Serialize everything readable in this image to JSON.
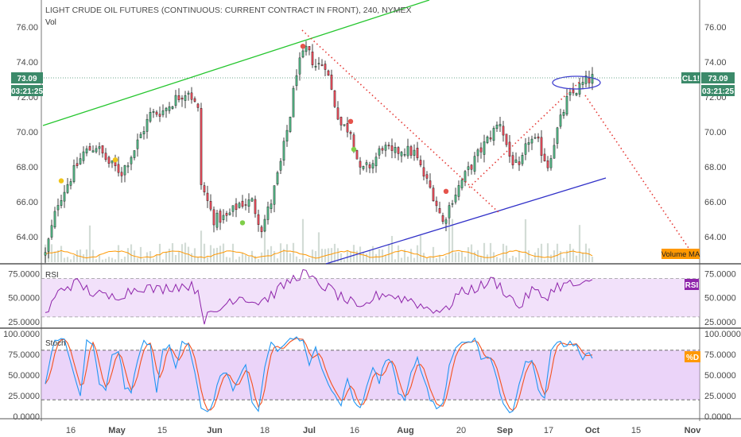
{
  "chart_data": {
    "type": "candlestick",
    "title": "LIGHT CRUDE OIL FUTURES (CONTINUOUS: CURRENT CONTRACT IN FRONT), 240, NYMEX",
    "symbol": "CL1!",
    "last_price": "73.09",
    "countdown": "03:21:25",
    "x_tick_labels": [
      "16",
      "May",
      "15",
      "Jun",
      "18",
      "Jul",
      "16",
      "Aug",
      "20",
      "Sep",
      "17",
      "Oct",
      "15",
      "Nov"
    ],
    "price_panel": {
      "ylim": [
        63,
        77.5
      ],
      "y_ticks": [
        "76.00",
        "74.00",
        "72.00",
        "70.00",
        "68.00",
        "66.00",
        "64.00"
      ],
      "series_label": "Vol",
      "volume_ma_label": "Volume MA",
      "close_anchors": [
        [
          0,
          63.0
        ],
        [
          4,
          66.0
        ],
        [
          8,
          67.4
        ],
        [
          12,
          68.8
        ],
        [
          16,
          69.2
        ],
        [
          20,
          68.2
        ],
        [
          24,
          67.7
        ],
        [
          28,
          69.0
        ],
        [
          33,
          71.0
        ],
        [
          37,
          71.2
        ],
        [
          41,
          71.9
        ],
        [
          45,
          72.4
        ],
        [
          48,
          71.2
        ],
        [
          49,
          67.0
        ],
        [
          53,
          65.0
        ],
        [
          57,
          65.1
        ],
        [
          61,
          65.9
        ],
        [
          65,
          66.0
        ],
        [
          68,
          64.5
        ],
        [
          71,
          66.0
        ],
        [
          74,
          68.2
        ],
        [
          77,
          71.0
        ],
        [
          79,
          73.5
        ],
        [
          82,
          74.7
        ],
        [
          85,
          73.8
        ],
        [
          88,
          73.9
        ],
        [
          91,
          71.6
        ],
        [
          93,
          70.4
        ],
        [
          96,
          70.1
        ],
        [
          99,
          67.7
        ],
        [
          103,
          68.2
        ],
        [
          106,
          69.2
        ],
        [
          109,
          68.7
        ],
        [
          112,
          69.0
        ],
        [
          116,
          68.8
        ],
        [
          119,
          67.5
        ],
        [
          122,
          66.4
        ],
        [
          125,
          64.8
        ],
        [
          128,
          66.2
        ],
        [
          131,
          67.2
        ],
        [
          134,
          68.1
        ],
        [
          137,
          69.0
        ],
        [
          140,
          69.8
        ],
        [
          143,
          70.6
        ],
        [
          146,
          68.6
        ],
        [
          149,
          67.8
        ],
        [
          152,
          69.6
        ],
        [
          155,
          69.3
        ],
        [
          158,
          68.1
        ],
        [
          161,
          70.1
        ],
        [
          164,
          71.8
        ],
        [
          167,
          72.4
        ],
        [
          170,
          72.9
        ],
        [
          172,
          73.09
        ]
      ]
    },
    "rsi_panel": {
      "label": "RSI",
      "y_ticks": [
        "75.0000",
        "50.0000",
        "25.0000"
      ],
      "band": [
        30,
        70
      ],
      "ylim": [
        20,
        82
      ],
      "anchors": [
        [
          0,
          32
        ],
        [
          5,
          60
        ],
        [
          10,
          65
        ],
        [
          15,
          55
        ],
        [
          20,
          50
        ],
        [
          25,
          55
        ],
        [
          30,
          62
        ],
        [
          35,
          58
        ],
        [
          40,
          62
        ],
        [
          45,
          63
        ],
        [
          48,
          58
        ],
        [
          50,
          28
        ],
        [
          54,
          35
        ],
        [
          58,
          48
        ],
        [
          62,
          52
        ],
        [
          66,
          45
        ],
        [
          70,
          50
        ],
        [
          74,
          60
        ],
        [
          78,
          70
        ],
        [
          81,
          76
        ],
        [
          84,
          68
        ],
        [
          87,
          63
        ],
        [
          90,
          58
        ],
        [
          93,
          50
        ],
        [
          96,
          45
        ],
        [
          99,
          35
        ],
        [
          103,
          50
        ],
        [
          107,
          55
        ],
        [
          111,
          50
        ],
        [
          115,
          48
        ],
        [
          119,
          40
        ],
        [
          123,
          38
        ],
        [
          126,
          36
        ],
        [
          129,
          52
        ],
        [
          133,
          58
        ],
        [
          137,
          62
        ],
        [
          141,
          68
        ],
        [
          145,
          55
        ],
        [
          149,
          40
        ],
        [
          153,
          58
        ],
        [
          157,
          50
        ],
        [
          161,
          62
        ],
        [
          165,
          64
        ],
        [
          169,
          62
        ],
        [
          172,
          66
        ]
      ]
    },
    "stoch_panel": {
      "label": "Stoch",
      "signal_label": "%D",
      "y_ticks": [
        "100.0000",
        "75.0000",
        "50.0000",
        "25.0000",
        "0.0000"
      ],
      "band": [
        20,
        80
      ],
      "ylim": [
        0,
        100
      ],
      "k_anchors": [
        [
          0,
          40
        ],
        [
          3,
          95
        ],
        [
          6,
          92
        ],
        [
          9,
          50
        ],
        [
          11,
          25
        ],
        [
          13,
          90
        ],
        [
          15,
          85
        ],
        [
          17,
          40
        ],
        [
          19,
          30
        ],
        [
          21,
          75
        ],
        [
          23,
          80
        ],
        [
          25,
          35
        ],
        [
          27,
          28
        ],
        [
          29,
          70
        ],
        [
          31,
          90
        ],
        [
          33,
          85
        ],
        [
          35,
          30
        ],
        [
          37,
          80
        ],
        [
          39,
          85
        ],
        [
          41,
          60
        ],
        [
          43,
          92
        ],
        [
          45,
          88
        ],
        [
          47,
          55
        ],
        [
          49,
          8
        ],
        [
          51,
          4
        ],
        [
          53,
          20
        ],
        [
          55,
          50
        ],
        [
          57,
          55
        ],
        [
          59,
          30
        ],
        [
          61,
          48
        ],
        [
          63,
          60
        ],
        [
          65,
          15
        ],
        [
          67,
          5
        ],
        [
          69,
          60
        ],
        [
          71,
          90
        ],
        [
          73,
          80
        ],
        [
          75,
          85
        ],
        [
          77,
          95
        ],
        [
          79,
          94
        ],
        [
          81,
          90
        ],
        [
          83,
          60
        ],
        [
          85,
          85
        ],
        [
          87,
          60
        ],
        [
          89,
          40
        ],
        [
          91,
          25
        ],
        [
          93,
          15
        ],
        [
          95,
          45
        ],
        [
          97,
          20
        ],
        [
          99,
          8
        ],
        [
          101,
          35
        ],
        [
          103,
          60
        ],
        [
          105,
          40
        ],
        [
          107,
          70
        ],
        [
          109,
          65
        ],
        [
          111,
          30
        ],
        [
          113,
          20
        ],
        [
          115,
          55
        ],
        [
          117,
          70
        ],
        [
          119,
          45
        ],
        [
          121,
          20
        ],
        [
          123,
          10
        ],
        [
          125,
          15
        ],
        [
          127,
          60
        ],
        [
          129,
          85
        ],
        [
          131,
          92
        ],
        [
          133,
          88
        ],
        [
          135,
          95
        ],
        [
          137,
          70
        ],
        [
          139,
          75
        ],
        [
          141,
          60
        ],
        [
          143,
          25
        ],
        [
          145,
          8
        ],
        [
          147,
          5
        ],
        [
          149,
          40
        ],
        [
          151,
          65
        ],
        [
          153,
          70
        ],
        [
          155,
          35
        ],
        [
          157,
          20
        ],
        [
          159,
          80
        ],
        [
          161,
          92
        ],
        [
          163,
          85
        ],
        [
          165,
          90
        ],
        [
          167,
          85
        ],
        [
          169,
          70
        ],
        [
          171,
          78
        ],
        [
          172,
          73
        ]
      ]
    },
    "markers": [
      {
        "label": "arrow-down",
        "color": "#e5534b",
        "x": 81,
        "y": 74.9
      },
      {
        "label": "arrow-down",
        "color": "#e5534b",
        "x": 96,
        "y": 70.6
      },
      {
        "label": "arrow-up",
        "color": "#7fce49",
        "x": 97,
        "y": 69.0
      },
      {
        "label": "arrow-up",
        "color": "#f0c419",
        "x": 22,
        "y": 68.4
      },
      {
        "label": "arrow-up",
        "color": "#f0c419",
        "x": 5,
        "y": 67.2
      },
      {
        "label": "arrow-up",
        "color": "#7fce49",
        "x": 62,
        "y": 64.8
      },
      {
        "label": "arrow-down",
        "color": "#e5534b",
        "x": 126,
        "y": 66.6
      }
    ],
    "colors": {
      "up": "#53b987",
      "down": "#eb4d5c",
      "wick": "#000000",
      "green_line": "#26c62f",
      "blue_line": "#3030c8",
      "red_dots": "#e53935",
      "rsi_line": "#8e24aa",
      "rsi_band": "#e8c9f5",
      "stoch_band": "#ddb8f5",
      "stoch_k": "#2196f3",
      "stoch_d": "#f4511e",
      "vol_ma": "#ff9800",
      "price_badge": "#3c8a6a",
      "rsi_badge": "#8e24aa",
      "stoch_badge": "#ff9800",
      "ellipse": "#4040d0"
    }
  }
}
